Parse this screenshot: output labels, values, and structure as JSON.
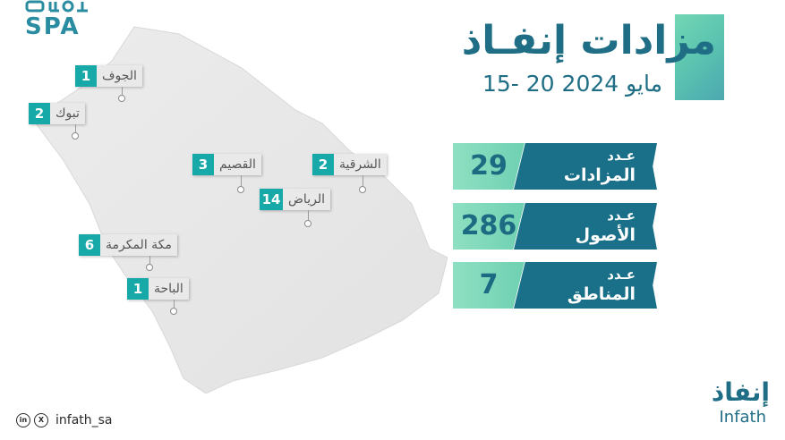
{
  "brand_top": {
    "text": "SPA"
  },
  "title": "مزادات إنفـاذ",
  "date_range": "15- 20 مايو 2024",
  "stats": [
    {
      "value": "29",
      "label_line1": "عـدد",
      "label_line2": "المزادات"
    },
    {
      "value": "286",
      "label_line1": "عـدد",
      "label_line2": "الأصول"
    },
    {
      "value": "7",
      "label_line1": "عـدد",
      "label_line2": "المناطق"
    }
  ],
  "regions": [
    {
      "name": "الجوف",
      "count": "1"
    },
    {
      "name": "تبوك",
      "count": "2"
    },
    {
      "name": "القصيم",
      "count": "3"
    },
    {
      "name": "الشرقية",
      "count": "2"
    },
    {
      "name": "الرياض",
      "count": "14"
    },
    {
      "name": "مكة المكرمة",
      "count": "6"
    },
    {
      "name": "الباحة",
      "count": "1"
    }
  ],
  "social": {
    "handle": "infath_sa",
    "icons": [
      "linkedin-icon",
      "x-icon"
    ]
  },
  "footer_brand": {
    "arabic": "إنفاذ",
    "english": "Infath"
  },
  "colors": {
    "primary": "#1f6e85",
    "accent": "#6fd0b2",
    "teal": "#17a8a8"
  }
}
